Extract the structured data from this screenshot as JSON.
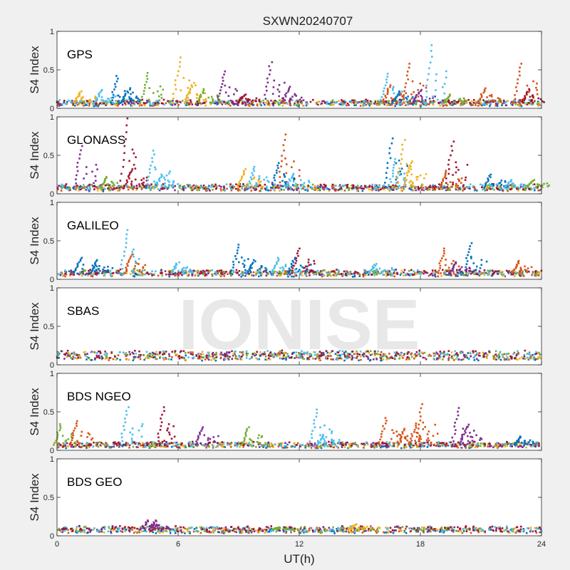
{
  "figure": {
    "title": "SXWN20240707",
    "xlabel": "UT(h)",
    "ylabel": "S4 Index",
    "watermark": "IONISE",
    "background": "#f0f0f0",
    "panel_background": "#ffffff"
  },
  "chart_data": [
    {
      "type": "scatter",
      "label": "GPS",
      "xlim": [
        0,
        24
      ],
      "ylim": [
        0,
        1
      ],
      "xticks": [
        0,
        6,
        12,
        18,
        24
      ],
      "yticks": [
        0,
        0.5,
        1
      ],
      "ytick_labels": [
        "0",
        "0.5",
        "1"
      ],
      "show_xticklabels": false,
      "baseline": 0.07,
      "spikes": [
        {
          "x": 1.2,
          "y": 0.22,
          "c": 2
        },
        {
          "x": 2.2,
          "y": 0.24,
          "c": 5
        },
        {
          "x": 3.0,
          "y": 0.42,
          "c": 0
        },
        {
          "x": 3.5,
          "y": 0.22,
          "c": 0
        },
        {
          "x": 4.5,
          "y": 0.46,
          "c": 4
        },
        {
          "x": 6.1,
          "y": 0.66,
          "c": 2
        },
        {
          "x": 6.7,
          "y": 0.3,
          "c": 2
        },
        {
          "x": 7.3,
          "y": 0.25,
          "c": 4
        },
        {
          "x": 8.3,
          "y": 0.48,
          "c": 3
        },
        {
          "x": 9.3,
          "y": 0.18,
          "c": 6
        },
        {
          "x": 10.6,
          "y": 0.6,
          "c": 3
        },
        {
          "x": 11.5,
          "y": 0.28,
          "c": 3
        },
        {
          "x": 16.4,
          "y": 0.45,
          "c": 5
        },
        {
          "x": 16.5,
          "y": 0.3,
          "c": 1
        },
        {
          "x": 17.5,
          "y": 0.58,
          "c": 1
        },
        {
          "x": 17.0,
          "y": 0.22,
          "c": 0
        },
        {
          "x": 18.0,
          "y": 0.24,
          "c": 3
        },
        {
          "x": 18.6,
          "y": 0.82,
          "c": 5
        },
        {
          "x": 19.5,
          "y": 0.18,
          "c": 4
        },
        {
          "x": 21.2,
          "y": 0.26,
          "c": 1
        },
        {
          "x": 23.0,
          "y": 0.58,
          "c": 1
        },
        {
          "x": 23.4,
          "y": 0.25,
          "c": 6
        }
      ]
    },
    {
      "type": "scatter",
      "label": "GLONASS",
      "xlim": [
        0,
        24
      ],
      "ylim": [
        0,
        1
      ],
      "xticks": [
        0,
        6,
        12,
        18,
        24
      ],
      "yticks": [
        0,
        0.5,
        1
      ],
      "ytick_labels": [
        "0",
        "0.5",
        "1"
      ],
      "show_xticklabels": false,
      "baseline": 0.08,
      "spikes": [
        {
          "x": 1.2,
          "y": 0.62,
          "c": 3
        },
        {
          "x": 2.5,
          "y": 0.22,
          "c": 4
        },
        {
          "x": 3.5,
          "y": 0.98,
          "c": 6
        },
        {
          "x": 3.7,
          "y": 0.32,
          "c": 6
        },
        {
          "x": 4.8,
          "y": 0.56,
          "c": 5
        },
        {
          "x": 5.2,
          "y": 0.25,
          "c": 5
        },
        {
          "x": 9.3,
          "y": 0.32,
          "c": 2
        },
        {
          "x": 9.8,
          "y": 0.35,
          "c": 5
        },
        {
          "x": 11.3,
          "y": 0.77,
          "c": 1
        },
        {
          "x": 11.0,
          "y": 0.4,
          "c": 0
        },
        {
          "x": 11.7,
          "y": 0.26,
          "c": 5
        },
        {
          "x": 16.6,
          "y": 0.72,
          "c": 0
        },
        {
          "x": 16.8,
          "y": 0.45,
          "c": 5
        },
        {
          "x": 17.2,
          "y": 0.7,
          "c": 2
        },
        {
          "x": 17.5,
          "y": 0.4,
          "c": 2
        },
        {
          "x": 19.6,
          "y": 0.68,
          "c": 6
        },
        {
          "x": 19.3,
          "y": 0.3,
          "c": 1
        },
        {
          "x": 21.5,
          "y": 0.25,
          "c": 0
        },
        {
          "x": 22.5,
          "y": 0.18,
          "c": 5
        },
        {
          "x": 23.6,
          "y": 0.18,
          "c": 4
        }
      ]
    },
    {
      "type": "scatter",
      "label": "GALILEO",
      "xlim": [
        0,
        24
      ],
      "ylim": [
        0,
        1
      ],
      "xticks": [
        0,
        6,
        12,
        18,
        24
      ],
      "yticks": [
        0,
        0.5,
        1
      ],
      "ytick_labels": [
        "0",
        "0.5",
        "1"
      ],
      "show_xticklabels": false,
      "baseline": 0.08,
      "spikes": [
        {
          "x": 1.2,
          "y": 0.28,
          "c": 0
        },
        {
          "x": 2.0,
          "y": 0.25,
          "c": 0
        },
        {
          "x": 3.5,
          "y": 0.64,
          "c": 5
        },
        {
          "x": 3.7,
          "y": 0.32,
          "c": 1
        },
        {
          "x": 6.0,
          "y": 0.22,
          "c": 5
        },
        {
          "x": 9.0,
          "y": 0.45,
          "c": 0
        },
        {
          "x": 9.8,
          "y": 0.25,
          "c": 0
        },
        {
          "x": 11.0,
          "y": 0.28,
          "c": 5
        },
        {
          "x": 11.8,
          "y": 0.28,
          "c": 0
        },
        {
          "x": 12.0,
          "y": 0.4,
          "c": 6
        },
        {
          "x": 15.8,
          "y": 0.2,
          "c": 5
        },
        {
          "x": 19.2,
          "y": 0.4,
          "c": 1
        },
        {
          "x": 20.5,
          "y": 0.47,
          "c": 0
        },
        {
          "x": 19.8,
          "y": 0.22,
          "c": 3
        },
        {
          "x": 22.9,
          "y": 0.24,
          "c": 1
        }
      ]
    },
    {
      "type": "scatter",
      "label": "SBAS",
      "xlim": [
        0,
        24
      ],
      "ylim": [
        0,
        1
      ],
      "xticks": [
        0,
        6,
        12,
        18,
        24
      ],
      "yticks": [
        0,
        0.5,
        1
      ],
      "ytick_labels": [
        "0",
        "0.5",
        "1"
      ],
      "show_xticklabels": false,
      "baseline": 0.12,
      "spikes": []
    },
    {
      "type": "scatter",
      "label": "BDS NGEO",
      "xlim": [
        0,
        24
      ],
      "ylim": [
        0,
        1
      ],
      "xticks": [
        0,
        6,
        12,
        18,
        24
      ],
      "yticks": [
        0,
        0.5,
        1
      ],
      "ytick_labels": [
        "0",
        "0.5",
        "1"
      ],
      "show_xticklabels": false,
      "baseline": 0.07,
      "spikes": [
        {
          "x": 0.2,
          "y": 0.34,
          "c": 4
        },
        {
          "x": 1.0,
          "y": 0.38,
          "c": 1
        },
        {
          "x": 3.5,
          "y": 0.56,
          "c": 5
        },
        {
          "x": 5.3,
          "y": 0.56,
          "c": 6
        },
        {
          "x": 7.2,
          "y": 0.3,
          "c": 3
        },
        {
          "x": 9.5,
          "y": 0.3,
          "c": 4
        },
        {
          "x": 12.9,
          "y": 0.53,
          "c": 5
        },
        {
          "x": 13.2,
          "y": 0.2,
          "c": 5
        },
        {
          "x": 16.3,
          "y": 0.42,
          "c": 1
        },
        {
          "x": 17.2,
          "y": 0.28,
          "c": 1
        },
        {
          "x": 18.1,
          "y": 0.6,
          "c": 1
        },
        {
          "x": 17.8,
          "y": 0.35,
          "c": 1
        },
        {
          "x": 19.9,
          "y": 0.55,
          "c": 3
        },
        {
          "x": 20.3,
          "y": 0.3,
          "c": 3
        },
        {
          "x": 23.0,
          "y": 0.18,
          "c": 0
        }
      ]
    },
    {
      "type": "scatter",
      "label": "BDS GEO",
      "xlim": [
        0,
        24
      ],
      "ylim": [
        0,
        1
      ],
      "xticks": [
        0,
        6,
        12,
        18,
        24
      ],
      "yticks": [
        0,
        0.5,
        1
      ],
      "ytick_labels": [
        "0",
        "0.5",
        "1"
      ],
      "show_xticklabels": true,
      "baseline": 0.08,
      "spikes": [
        {
          "x": 4.5,
          "y": 0.2,
          "c": 3
        },
        {
          "x": 4.9,
          "y": 0.2,
          "c": 3
        },
        {
          "x": 11.0,
          "y": 0.11,
          "c": 4
        },
        {
          "x": 14.8,
          "y": 0.15,
          "c": 2
        }
      ]
    }
  ],
  "colors": [
    "#0072bd",
    "#d95319",
    "#edb120",
    "#7e2f8e",
    "#77ac30",
    "#4dbeee",
    "#a2142f"
  ]
}
